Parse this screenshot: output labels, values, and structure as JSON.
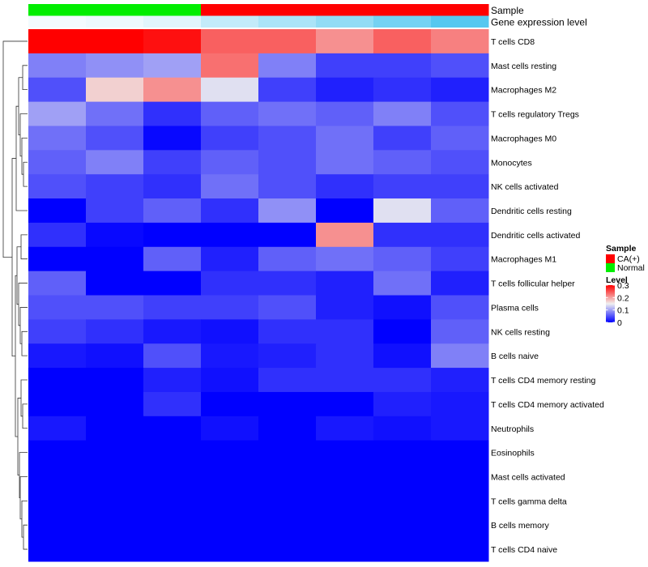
{
  "chart_data": {
    "type": "heatmap",
    "annotation_tracks": [
      {
        "name": "Sample",
        "values": [
          "Normal",
          "Normal",
          "Normal",
          "CA(+)",
          "CA(+)",
          "CA(+)",
          "CA(+)",
          "CA(+)"
        ]
      },
      {
        "name": "Gene expression level",
        "values": [
          0.02,
          0.03,
          0.05,
          0.1,
          0.14,
          0.18,
          0.23,
          0.28
        ]
      }
    ],
    "rows": [
      "T cells CD8",
      "Mast cells resting",
      "Macrophages M2",
      "T cells regulatory  Tregs",
      "Macrophages M0",
      "Monocytes",
      "NK cells activated",
      "Dendritic cells resting",
      "Dendritic cells activated",
      "Macrophages M1",
      "T cells follicular helper",
      "Plasma cells",
      "NK cells resting",
      "B cells naive",
      "T cells CD4 memory resting",
      "T cells CD4 memory activated",
      "Neutrophils",
      "Eosinophils",
      "Mast cells activated",
      "T cells gamma delta",
      "B cells memory",
      "T cells CD4 naive"
    ],
    "values": [
      [
        0.3,
        0.3,
        0.29,
        0.24,
        0.24,
        0.21,
        0.24,
        0.22
      ],
      [
        0.08,
        0.09,
        0.1,
        0.23,
        0.08,
        0.04,
        0.04,
        0.05
      ],
      [
        0.05,
        0.17,
        0.21,
        0.14,
        0.04,
        0.02,
        0.03,
        0.02
      ],
      [
        0.1,
        0.07,
        0.03,
        0.06,
        0.07,
        0.06,
        0.08,
        0.05
      ],
      [
        0.07,
        0.05,
        0.005,
        0.04,
        0.05,
        0.07,
        0.04,
        0.06
      ],
      [
        0.06,
        0.08,
        0.04,
        0.06,
        0.05,
        0.07,
        0.06,
        0.05
      ],
      [
        0.05,
        0.04,
        0.03,
        0.07,
        0.05,
        0.03,
        0.04,
        0.04
      ],
      [
        0.0,
        0.04,
        0.06,
        0.03,
        0.09,
        0.0,
        0.14,
        0.06
      ],
      [
        0.03,
        0.005,
        0.0,
        0.0,
        0.0,
        0.21,
        0.03,
        0.03
      ],
      [
        0.0,
        0.0,
        0.06,
        0.02,
        0.06,
        0.07,
        0.06,
        0.04
      ],
      [
        0.06,
        0.0,
        0.0,
        0.03,
        0.03,
        0.02,
        0.07,
        0.02
      ],
      [
        0.05,
        0.05,
        0.04,
        0.04,
        0.05,
        0.02,
        0.01,
        0.05
      ],
      [
        0.04,
        0.03,
        0.015,
        0.01,
        0.03,
        0.03,
        0.0,
        0.06
      ],
      [
        0.015,
        0.01,
        0.05,
        0.015,
        0.02,
        0.03,
        0.01,
        0.08
      ],
      [
        0.0,
        0.0,
        0.02,
        0.01,
        0.03,
        0.03,
        0.03,
        0.02
      ],
      [
        0.0,
        0.0,
        0.03,
        0.0,
        0.0,
        0.0,
        0.02,
        0.015
      ],
      [
        0.015,
        0.0,
        0.0,
        0.01,
        0.0,
        0.015,
        0.01,
        0.015
      ],
      [
        0.0,
        0.0,
        0.0,
        0.0,
        0.0,
        0.0,
        0.0,
        0.0
      ],
      [
        0.0,
        0.0,
        0.0,
        0.0,
        0.0,
        0.0,
        0.0,
        0.0
      ],
      [
        0.0,
        0.0,
        0.0,
        0.0,
        0.0,
        0.0,
        0.0,
        0.0
      ],
      [
        0.0,
        0.0,
        0.0,
        0.0,
        0.0,
        0.0,
        0.0,
        0.0
      ],
      [
        0.0,
        0.0,
        0.0,
        0.0,
        0.0,
        0.0,
        0.0,
        0.0
      ]
    ],
    "color_scale": {
      "low": "#0000ff",
      "mid": "#f0f0f0",
      "high": "#ff0000",
      "domain": [
        0,
        0.15,
        0.3
      ]
    },
    "row_dendrogram": true,
    "legend": {
      "placement": "right",
      "sample": {
        "title": "Sample",
        "items": [
          {
            "label": "CA(+)",
            "color": "#ff0000"
          },
          {
            "label": "Normal",
            "color": "#00ee00"
          }
        ]
      },
      "level": {
        "title": "Level",
        "ticks": [
          "0.3",
          "0.2",
          "0.1",
          "0"
        ],
        "tick_values": [
          0.3,
          0.2,
          0.1,
          0
        ]
      }
    },
    "expression_color_scale": {
      "low": "#ffffff",
      "high": "#56c8f0"
    }
  }
}
